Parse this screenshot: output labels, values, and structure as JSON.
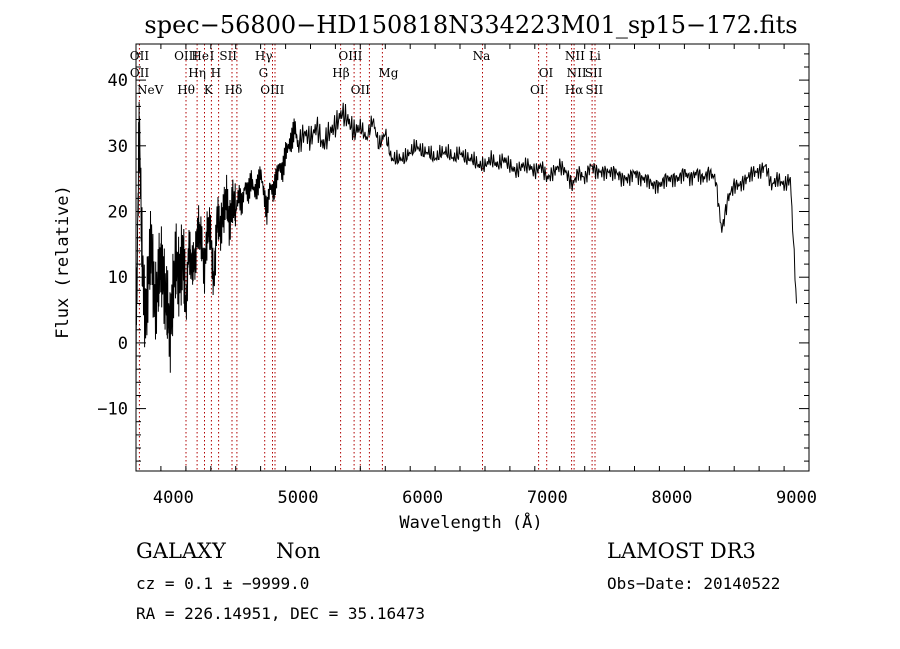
{
  "chart_data": {
    "type": "line",
    "title": "spec−56800−HD150818N334223M01_sp15−172.fits",
    "xlabel": "Wavelength (Å)",
    "ylabel": "Flux (relative)",
    "xlim": [
      3700,
      9100
    ],
    "ylim": [
      -19.5,
      45.5
    ],
    "grid": false,
    "legend": "none",
    "x_ticks": [
      {
        "value": 4000,
        "label": "4000"
      },
      {
        "value": 5000,
        "label": "5000"
      },
      {
        "value": 6000,
        "label": "6000"
      },
      {
        "value": 7000,
        "label": "7000"
      },
      {
        "value": 8000,
        "label": "8000"
      },
      {
        "value": 9000,
        "label": "9000"
      }
    ],
    "y_ticks": [
      {
        "value": -10,
        "label": "−10"
      },
      {
        "value": 0,
        "label": "0"
      },
      {
        "value": 10,
        "label": "10"
      },
      {
        "value": 20,
        "label": "20"
      },
      {
        "value": 30,
        "label": "30"
      },
      {
        "value": 40,
        "label": "40"
      }
    ],
    "series": [
      {
        "color": "#000000",
        "x": [
          3700,
          3725,
          3750,
          3775,
          3800,
          3825,
          3850,
          3875,
          3900,
          3925,
          3950,
          3975,
          4000,
          4025,
          4050,
          4075,
          4100,
          4125,
          4150,
          4175,
          4200,
          4225,
          4250,
          4275,
          4300,
          4325,
          4350,
          4375,
          4400,
          4425,
          4450,
          4475,
          4500,
          4525,
          4550,
          4575,
          4600,
          4625,
          4650,
          4675,
          4700,
          4725,
          4750,
          4775,
          4800,
          4825,
          4850,
          4875,
          4900,
          4925,
          4950,
          4975,
          5000,
          5050,
          5100,
          5150,
          5200,
          5250,
          5300,
          5350,
          5400,
          5450,
          5500,
          5550,
          5600,
          5650,
          5700,
          5750,
          5800,
          5850,
          5900,
          5950,
          6000,
          6050,
          6100,
          6150,
          6200,
          6250,
          6300,
          6350,
          6400,
          6450,
          6500,
          6550,
          6600,
          6650,
          6700,
          6750,
          6800,
          6850,
          6900,
          6950,
          7000,
          7050,
          7100,
          7150,
          7200,
          7250,
          7300,
          7350,
          7400,
          7450,
          7500,
          7550,
          7600,
          7650,
          7700,
          7750,
          7800,
          7850,
          7900,
          7950,
          8000,
          8050,
          8100,
          8150,
          8200,
          8250,
          8300,
          8350,
          8400,
          8450,
          8500,
          8550,
          8600,
          8650,
          8700,
          8750,
          8800,
          8850,
          8900,
          8950,
          9000
        ],
        "y": [
          -2,
          34,
          12,
          4,
          10,
          15,
          6,
          8,
          13,
          9,
          5,
          2,
          9,
          12,
          10,
          14,
          5,
          15,
          11,
          13,
          18,
          15,
          11,
          18,
          16,
          9,
          19,
          17,
          20,
          22,
          18,
          22,
          20,
          23,
          21,
          24,
          23,
          25,
          23,
          24,
          26,
          23,
          20,
          24,
          23,
          25,
          27,
          26,
          29,
          30,
          31,
          33,
          30,
          32,
          31,
          33,
          30,
          32,
          33,
          35,
          34,
          32,
          33,
          31,
          34,
          30,
          32,
          28,
          28,
          28,
          29,
          30,
          29,
          29,
          28,
          29,
          29,
          28,
          29,
          28,
          28,
          27,
          27,
          28,
          27,
          28,
          27,
          26,
          27,
          27,
          26,
          27,
          25,
          26,
          27,
          26,
          24,
          26,
          25,
          27,
          26,
          26,
          26,
          26,
          25,
          25,
          26,
          25,
          25,
          24,
          24,
          25,
          25,
          25,
          26,
          25,
          26,
          25,
          26,
          25,
          17,
          22,
          24,
          24,
          25,
          26,
          26,
          27,
          24,
          25,
          24,
          25,
          6
        ]
      }
    ],
    "annotations": [
      {
        "label": "NeV",
        "x": 3726,
        "tier": 3
      },
      {
        "label": "OII",
        "x": 3727,
        "tier": 0
      },
      {
        "label": "OII",
        "x": 3729,
        "tier": 1
      },
      {
        "label": "OIII",
        "x": 4102,
        "tier": 0
      },
      {
        "label": "Hθ",
        "x": 4102,
        "tier": 2
      },
      {
        "label": "Hη",
        "x": 4190,
        "tier": 1
      },
      {
        "label": "He",
        "x": 4215,
        "tier": 0
      },
      {
        "label": "I",
        "x": 4310,
        "tier": 0
      },
      {
        "label": "K",
        "x": 4280,
        "tier": 2
      },
      {
        "label": "H",
        "x": 4340,
        "tier": 1
      },
      {
        "label": "SII",
        "x": 4440,
        "tier": 0
      },
      {
        "label": "Hδ",
        "x": 4482,
        "tier": 2
      },
      {
        "label": "Hγ",
        "x": 4725,
        "tier": 0
      },
      {
        "label": "G",
        "x": 4722,
        "tier": 1
      },
      {
        "label": "OIII",
        "x": 4794,
        "tier": 2
      },
      {
        "label": "OIII",
        "x": 5420,
        "tier": 0
      },
      {
        "label": "Hβ",
        "x": 5345,
        "tier": 1
      },
      {
        "label": "OII",
        "x": 5500,
        "tier": 2
      },
      {
        "label": "Mg",
        "x": 5725,
        "tier": 1
      },
      {
        "label": "Na",
        "x": 6472,
        "tier": 0
      },
      {
        "label": "OI",
        "x": 6990,
        "tier": 1
      },
      {
        "label": "OI",
        "x": 6920,
        "tier": 2
      },
      {
        "label": "NII",
        "x": 7222,
        "tier": 0
      },
      {
        "label": "Li",
        "x": 7382,
        "tier": 0
      },
      {
        "label": "NII",
        "x": 7235,
        "tier": 1
      },
      {
        "label": "SII",
        "x": 7372,
        "tier": 1
      },
      {
        "label": "Hα",
        "x": 7215,
        "tier": 2
      },
      {
        "label": "SII",
        "x": 7378,
        "tier": 2
      }
    ],
    "line_markers": [
      3727,
      4101,
      4190,
      4250,
      4305,
      4363,
      4470,
      4510,
      4733,
      4795,
      4815,
      5342,
      5450,
      5500,
      5573,
      5677,
      6480,
      6930,
      6995,
      7195,
      7215,
      7360,
      7383
    ]
  },
  "info": {
    "class": "GALAXY",
    "subclass": "Non",
    "survey": "LAMOST DR3",
    "cz": "cz = 0.1 ± −9999.0",
    "obs_date": "Obs−Date: 20140522",
    "radec": "RA = 226.14951, DEC =  35.16473"
  },
  "colors": {
    "marker": "#b00000",
    "axis": "#000000"
  }
}
